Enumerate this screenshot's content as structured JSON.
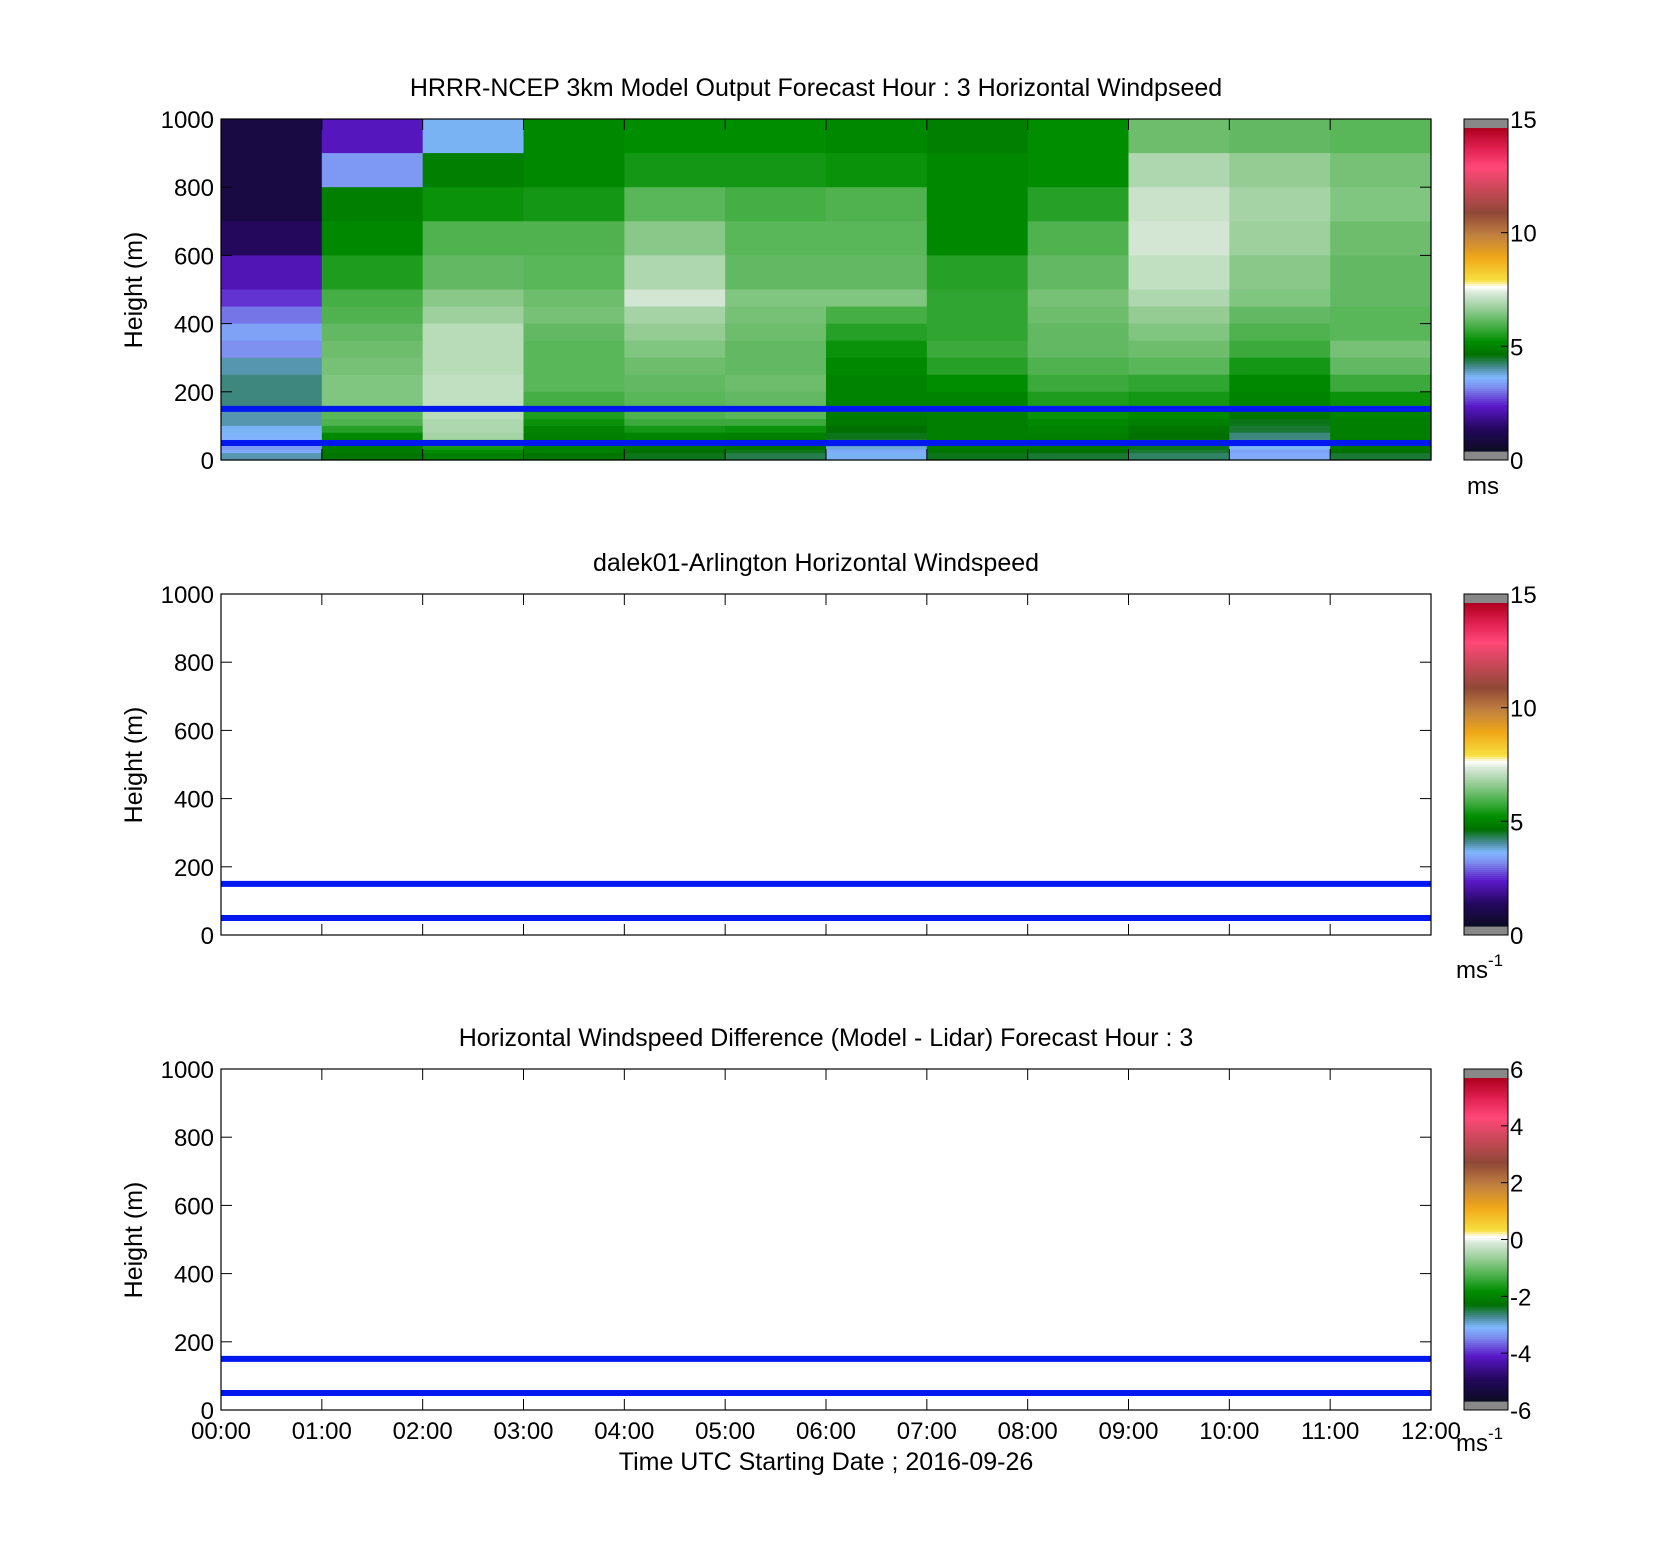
{
  "figure": {
    "xlabel": "Time UTC  Starting Date ; 2016-09-26",
    "xtick_labels": [
      "00:00",
      "01:00",
      "02:00",
      "03:00",
      "04:00",
      "05:00",
      "06:00",
      "07:00",
      "08:00",
      "09:00",
      "10:00",
      "11:00",
      "12:00"
    ]
  },
  "chart_data": [
    {
      "type": "heatmap",
      "title": "HRRR-NCEP 3km Model Output   Forecast Hour : 3 Horizontal Windpseed",
      "ylabel": "Height (m)",
      "xlim": [
        0,
        12
      ],
      "ylim": [
        0,
        1000
      ],
      "yticks": [
        0,
        200,
        400,
        600,
        800,
        1000
      ],
      "grid": false,
      "columns_start_hours": [
        0,
        1,
        2,
        3,
        4,
        5,
        6,
        7,
        8,
        9,
        10,
        11
      ],
      "row_levels_m": [
        1000,
        900,
        800,
        700,
        600,
        500,
        450,
        400,
        350,
        300,
        250,
        200,
        150,
        120,
        100,
        80,
        60,
        50,
        40,
        30,
        20,
        0
      ],
      "values_ms": [
        [
          0.6,
          2.0,
          3.5,
          5.0,
          5.1,
          5.1,
          5.0,
          4.8,
          5.1,
          6.2,
          6.1,
          6.0
        ],
        [
          0.6,
          3.1,
          4.8,
          5.0,
          5.3,
          5.3,
          5.2,
          5.0,
          5.1,
          6.9,
          6.6,
          6.3
        ],
        [
          0.6,
          4.8,
          5.2,
          5.3,
          6.0,
          5.8,
          5.9,
          5.0,
          5.5,
          7.2,
          6.8,
          6.4
        ],
        [
          1.0,
          5.0,
          5.9,
          5.9,
          6.5,
          6.0,
          6.0,
          5.0,
          5.9,
          7.3,
          6.7,
          6.2
        ],
        [
          1.9,
          5.4,
          6.1,
          6.0,
          6.9,
          6.1,
          6.1,
          5.5,
          6.1,
          7.1,
          6.5,
          6.1
        ],
        [
          2.3,
          5.8,
          6.5,
          6.2,
          7.3,
          6.4,
          6.4,
          5.6,
          6.3,
          6.9,
          6.4,
          6.1
        ],
        [
          2.8,
          5.9,
          6.7,
          6.3,
          6.8,
          6.3,
          5.8,
          5.6,
          6.2,
          6.6,
          6.1,
          6.0
        ],
        [
          3.2,
          6.1,
          7.0,
          6.1,
          6.6,
          6.2,
          5.5,
          5.6,
          6.1,
          6.4,
          5.9,
          6.0
        ],
        [
          3.0,
          6.2,
          7.0,
          6.0,
          6.4,
          6.1,
          5.2,
          5.7,
          6.1,
          6.2,
          5.7,
          6.3
        ],
        [
          3.8,
          6.3,
          7.0,
          6.0,
          6.2,
          6.1,
          5.0,
          5.5,
          5.9,
          6.0,
          5.3,
          6.1
        ],
        [
          4.0,
          6.4,
          7.1,
          6.0,
          6.1,
          6.2,
          4.9,
          5.1,
          5.7,
          5.6,
          5.0,
          5.7
        ],
        [
          4.0,
          6.4,
          7.1,
          5.8,
          6.0,
          6.1,
          4.9,
          4.9,
          5.4,
          5.3,
          4.9,
          5.2
        ],
        [
          3.8,
          6.0,
          7.0,
          5.4,
          5.9,
          6.0,
          4.7,
          4.8,
          5.2,
          5.0,
          4.6,
          4.9
        ],
        [
          3.8,
          5.9,
          6.9,
          5.2,
          5.7,
          5.7,
          4.7,
          4.8,
          5.0,
          4.8,
          4.4,
          4.8
        ],
        [
          3.5,
          5.5,
          6.9,
          4.9,
          5.3,
          5.2,
          4.5,
          4.8,
          4.9,
          4.6,
          4.3,
          4.8
        ],
        [
          3.4,
          5.0,
          6.8,
          4.8,
          4.9,
          4.8,
          4.4,
          4.8,
          4.8,
          4.5,
          4.0,
          4.8
        ],
        [
          3.3,
          4.8,
          6.4,
          4.8,
          4.8,
          4.6,
          4.2,
          4.8,
          4.7,
          4.4,
          3.9,
          4.7
        ],
        [
          3.2,
          4.8,
          5.6,
          4.8,
          4.7,
          4.6,
          3.9,
          4.7,
          4.6,
          4.4,
          3.7,
          4.6
        ],
        [
          3.1,
          4.7,
          5.3,
          4.8,
          4.6,
          4.5,
          3.6,
          4.7,
          4.6,
          4.4,
          3.4,
          4.6
        ],
        [
          3.3,
          4.7,
          5.1,
          4.8,
          4.5,
          4.4,
          3.3,
          4.6,
          4.5,
          4.3,
          3.2,
          4.5
        ],
        [
          3.8,
          4.6,
          4.8,
          4.6,
          4.4,
          4.2,
          3.5,
          4.4,
          4.3,
          4.1,
          3.3,
          4.3
        ]
      ],
      "reference_lines_m": [
        150,
        50
      ],
      "reference_line_color": "#0018f0",
      "colorbar": {
        "min": 0,
        "max": 15,
        "ticks": [
          0,
          5,
          10,
          15
        ],
        "unit": "ms"
      }
    },
    {
      "type": "heatmap",
      "title": "dalek01-Arlington  Horizontal Windspeed",
      "ylabel": "Height (m)",
      "xlim": [
        0,
        12
      ],
      "ylim": [
        0,
        1000
      ],
      "yticks": [
        0,
        200,
        400,
        600,
        800,
        1000
      ],
      "grid": false,
      "values": [],
      "reference_lines_m": [
        150,
        50
      ],
      "reference_line_color": "#0018f0",
      "colorbar": {
        "min": 0,
        "max": 15,
        "ticks": [
          0,
          5,
          10,
          15
        ],
        "unit": "ms",
        "unit_sup": "-1"
      }
    },
    {
      "type": "heatmap",
      "title": "Horizontal Windspeed Difference (Model - Lidar) Forecast Hour : 3",
      "ylabel": "Height (m)",
      "xlim": [
        0,
        12
      ],
      "ylim": [
        0,
        1000
      ],
      "yticks": [
        0,
        200,
        400,
        600,
        800,
        1000
      ],
      "grid": false,
      "values": [],
      "reference_lines_m": [
        150,
        50
      ],
      "reference_line_color": "#0018f0",
      "colorbar": {
        "min": -6,
        "max": 6,
        "ticks": [
          -6,
          -4,
          -2,
          0,
          2,
          4,
          6
        ],
        "unit": "ms",
        "unit_sup": "-1"
      }
    }
  ],
  "colormap_stops": [
    {
      "t": 0.0,
      "color": "#0c0c22"
    },
    {
      "t": 0.07,
      "color": "#24085e"
    },
    {
      "t": 0.14,
      "color": "#5a18c8"
    },
    {
      "t": 0.2,
      "color": "#7e90f0"
    },
    {
      "t": 0.23,
      "color": "#80b8ff"
    },
    {
      "t": 0.26,
      "color": "#4a8c98"
    },
    {
      "t": 0.3,
      "color": "#007000"
    },
    {
      "t": 0.34,
      "color": "#008e00"
    },
    {
      "t": 0.39,
      "color": "#4ab04a"
    },
    {
      "t": 0.44,
      "color": "#94cc94"
    },
    {
      "t": 0.49,
      "color": "#d8e8d8"
    },
    {
      "t": 0.51,
      "color": "#ffffff"
    },
    {
      "t": 0.53,
      "color": "#f8e040"
    },
    {
      "t": 0.6,
      "color": "#f0a818"
    },
    {
      "t": 0.67,
      "color": "#c08040"
    },
    {
      "t": 0.74,
      "color": "#904838"
    },
    {
      "t": 0.81,
      "color": "#c84858"
    },
    {
      "t": 0.88,
      "color": "#ff4878"
    },
    {
      "t": 0.94,
      "color": "#e02050"
    },
    {
      "t": 1.0,
      "color": "#b00020"
    }
  ],
  "colorbar_end_color": "#888888"
}
